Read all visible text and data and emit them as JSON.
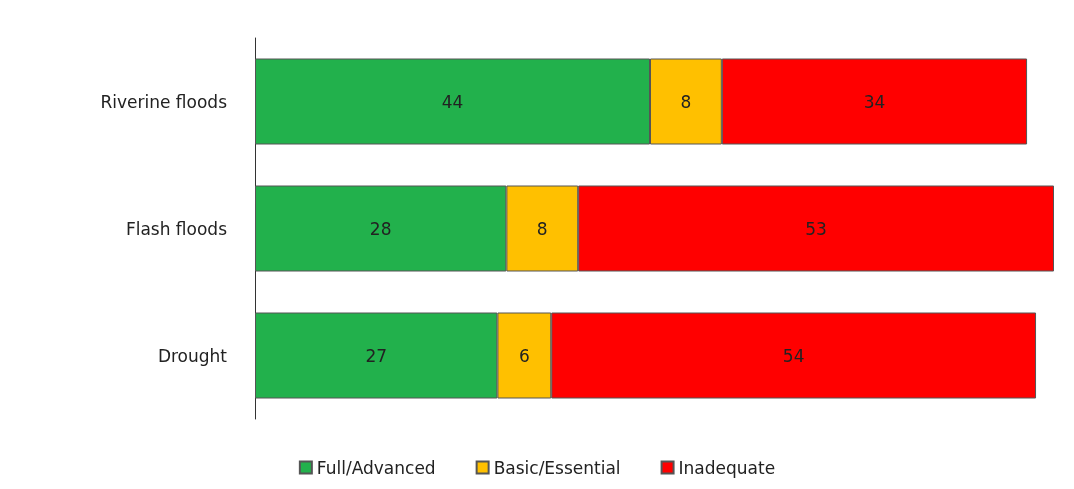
{
  "chart_data": {
    "type": "bar",
    "orientation": "horizontal",
    "stacked": true,
    "data_labels": true,
    "legend": "bottom",
    "categories": [
      "Riverine floods",
      "Flash floods",
      "Drought"
    ],
    "series": [
      {
        "name": "Full/Advanced",
        "color": "#22b14c",
        "values": [
          44,
          28,
          27
        ]
      },
      {
        "name": "Basic/Essential",
        "color": "#ffc000",
        "values": [
          8,
          8,
          6
        ]
      },
      {
        "name": "Inadequate",
        "color": "#ff0000",
        "values": [
          34,
          53,
          54
        ]
      }
    ]
  }
}
